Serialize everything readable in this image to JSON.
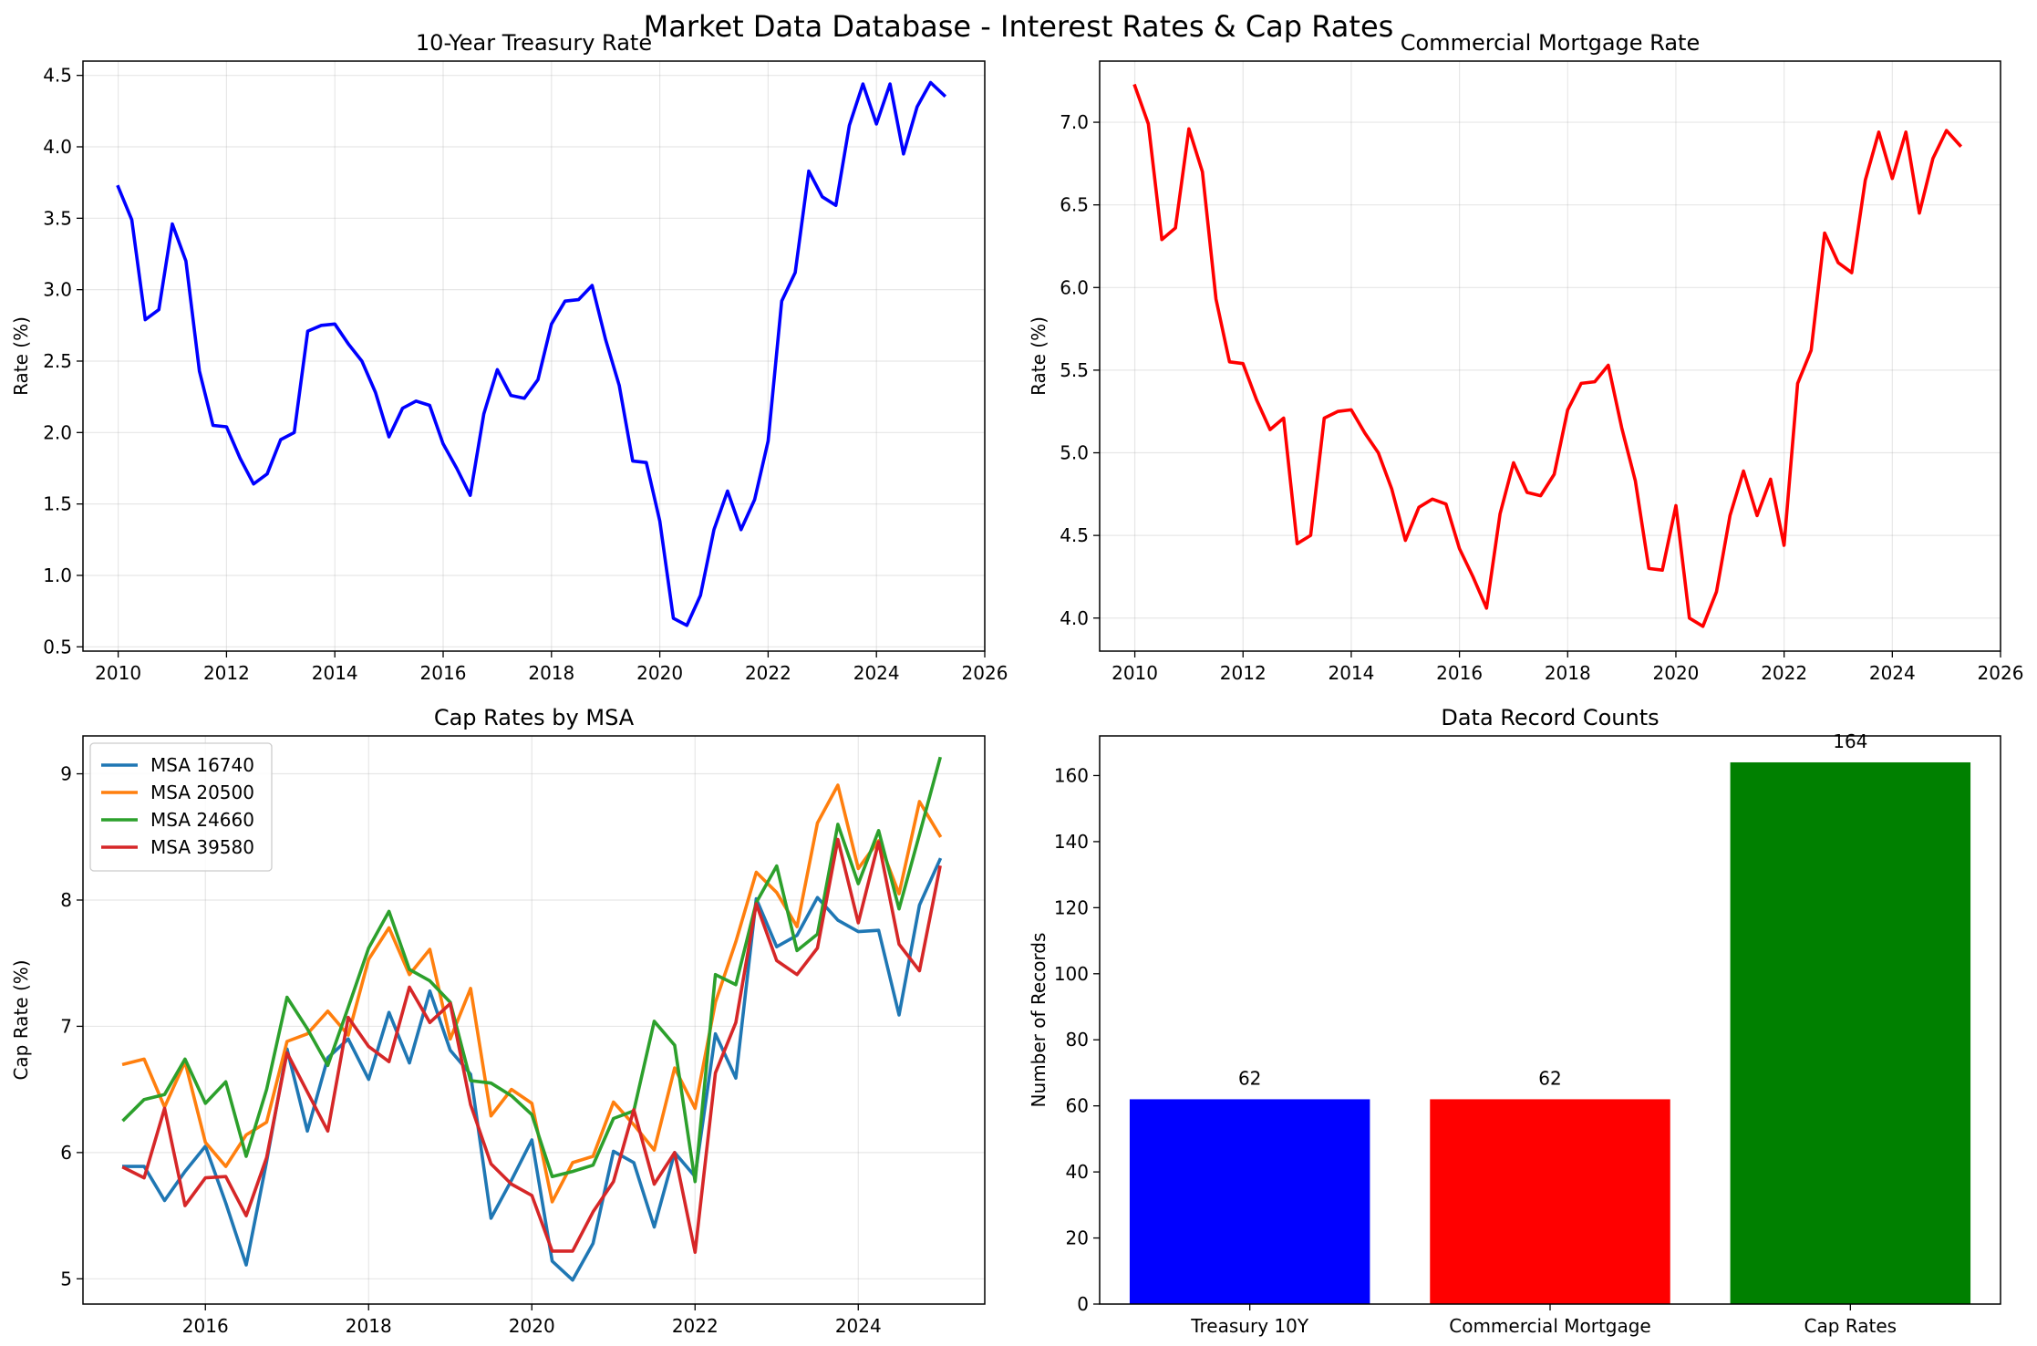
{
  "suptitle": "Market Data Database - Interest Rates & Cap Rates",
  "chart_data": [
    {
      "type": "line",
      "title": "10-Year Treasury Rate",
      "xlabel": "",
      "ylabel": "Rate (%)",
      "xlim": [
        2009.35,
        2026
      ],
      "ylim": [
        0.47,
        4.6
      ],
      "xticks": [
        2010,
        2012,
        2014,
        2016,
        2018,
        2020,
        2022,
        2024,
        2026
      ],
      "yticks": [
        0.5,
        1.0,
        1.5,
        2.0,
        2.5,
        3.0,
        3.5,
        4.0,
        4.5
      ],
      "ytick_decimals": 1,
      "grid": true,
      "series": [
        {
          "color": "#0000ff",
          "x": [
            2010.0,
            2010.25,
            2010.5,
            2010.75,
            2011.0,
            2011.25,
            2011.5,
            2011.75,
            2012.0,
            2012.25,
            2012.5,
            2012.75,
            2013.0,
            2013.25,
            2013.5,
            2013.75,
            2014.0,
            2014.25,
            2014.5,
            2014.75,
            2015.0,
            2015.25,
            2015.5,
            2015.75,
            2016.0,
            2016.25,
            2016.5,
            2016.75,
            2017.0,
            2017.25,
            2017.5,
            2017.75,
            2018.0,
            2018.25,
            2018.5,
            2018.75,
            2019.0,
            2019.25,
            2019.5,
            2019.75,
            2020.0,
            2020.25,
            2020.5,
            2020.75,
            2021.0,
            2021.25,
            2021.5,
            2021.75,
            2022.0,
            2022.25,
            2022.5,
            2022.75,
            2023.0,
            2023.25,
            2023.5,
            2023.75,
            2024.0,
            2024.25,
            2024.5,
            2024.75,
            2025.0,
            2025.25
          ],
          "y": [
            3.72,
            3.49,
            2.79,
            2.86,
            3.46,
            3.2,
            2.43,
            2.05,
            2.04,
            1.82,
            1.64,
            1.71,
            1.95,
            2.0,
            2.71,
            2.75,
            2.76,
            2.62,
            2.5,
            2.28,
            1.97,
            2.17,
            2.22,
            2.19,
            1.92,
            1.75,
            1.56,
            2.13,
            2.44,
            2.26,
            2.24,
            2.37,
            2.76,
            2.92,
            2.93,
            3.03,
            2.65,
            2.33,
            1.8,
            1.79,
            1.38,
            0.7,
            0.65,
            0.86,
            1.32,
            1.59,
            1.32,
            1.53,
            1.94,
            2.92,
            3.12,
            3.83,
            3.65,
            3.59,
            4.15,
            4.44,
            4.16,
            4.44,
            3.95,
            4.28,
            4.45,
            4.36
          ]
        }
      ]
    },
    {
      "type": "line",
      "title": "Commercial Mortgage Rate",
      "xlabel": "",
      "ylabel": "Rate (%)",
      "xlim": [
        2009.35,
        2026
      ],
      "ylim": [
        3.8,
        7.37
      ],
      "xticks": [
        2010,
        2012,
        2014,
        2016,
        2018,
        2020,
        2022,
        2024,
        2026
      ],
      "yticks": [
        4.0,
        4.5,
        5.0,
        5.5,
        6.0,
        6.5,
        7.0
      ],
      "ytick_decimals": 1,
      "grid": true,
      "series": [
        {
          "color": "#ff0000",
          "x": [
            2010.0,
            2010.25,
            2010.5,
            2010.75,
            2011.0,
            2011.25,
            2011.5,
            2011.75,
            2012.0,
            2012.25,
            2012.5,
            2012.75,
            2013.0,
            2013.25,
            2013.5,
            2013.75,
            2014.0,
            2014.25,
            2014.5,
            2014.75,
            2015.0,
            2015.25,
            2015.5,
            2015.75,
            2016.0,
            2016.25,
            2016.5,
            2016.75,
            2017.0,
            2017.25,
            2017.5,
            2017.75,
            2018.0,
            2018.25,
            2018.5,
            2018.75,
            2019.0,
            2019.25,
            2019.5,
            2019.75,
            2020.0,
            2020.25,
            2020.5,
            2020.75,
            2021.0,
            2021.25,
            2021.5,
            2021.75,
            2022.0,
            2022.25,
            2022.5,
            2022.75,
            2023.0,
            2023.25,
            2023.5,
            2023.75,
            2024.0,
            2024.25,
            2024.5,
            2024.75,
            2025.0,
            2025.25
          ],
          "y": [
            7.22,
            6.99,
            6.29,
            6.36,
            6.96,
            6.7,
            5.93,
            5.55,
            5.54,
            5.32,
            5.14,
            5.21,
            4.45,
            4.5,
            5.21,
            5.25,
            5.26,
            5.12,
            5.0,
            4.78,
            4.47,
            4.67,
            4.72,
            4.69,
            4.42,
            4.25,
            4.06,
            4.63,
            4.94,
            4.76,
            4.74,
            4.87,
            5.26,
            5.42,
            5.43,
            5.53,
            5.15,
            4.83,
            4.3,
            4.29,
            4.68,
            4.0,
            3.95,
            4.16,
            4.62,
            4.89,
            4.62,
            4.84,
            4.44,
            5.42,
            5.62,
            6.33,
            6.15,
            6.09,
            6.65,
            6.94,
            6.66,
            6.94,
            6.45,
            6.78,
            6.95,
            6.86
          ]
        }
      ]
    },
    {
      "type": "line",
      "title": "Cap Rates by MSA",
      "xlabel": "",
      "ylabel": "Cap Rate (%)",
      "xlim": [
        2014.5,
        2025.55
      ],
      "ylim": [
        4.8,
        9.3
      ],
      "xticks": [
        2016,
        2018,
        2020,
        2022,
        2024
      ],
      "yticks": [
        5,
        6,
        7,
        8,
        9
      ],
      "ytick_decimals": 0,
      "grid": true,
      "legend": "top-left",
      "series": [
        {
          "name": "MSA 16740",
          "color": "#1f77b4",
          "x": [
            2015.0,
            2015.25,
            2015.5,
            2015.75,
            2016.0,
            2016.25,
            2016.5,
            2016.75,
            2017.0,
            2017.25,
            2017.5,
            2017.75,
            2018.0,
            2018.25,
            2018.5,
            2018.75,
            2019.0,
            2019.25,
            2019.5,
            2019.75,
            2020.0,
            2020.25,
            2020.5,
            2020.75,
            2021.0,
            2021.25,
            2021.5,
            2021.75,
            2022.0,
            2022.25,
            2022.5,
            2022.75,
            2023.0,
            2023.25,
            2023.5,
            2023.75,
            2024.0,
            2024.25,
            2024.5,
            2024.75,
            2025.0
          ],
          "y": [
            5.89,
            5.89,
            5.62,
            5.85,
            6.05,
            5.6,
            5.11,
            5.93,
            6.82,
            6.17,
            6.75,
            6.9,
            6.58,
            7.11,
            6.71,
            7.28,
            6.81,
            6.62,
            5.48,
            5.78,
            6.1,
            5.14,
            4.99,
            5.28,
            6.01,
            5.92,
            5.41,
            6.0,
            5.81,
            6.94,
            6.59,
            8.01,
            7.63,
            7.72,
            8.02,
            7.84,
            7.75,
            7.76,
            7.09,
            7.96,
            8.32
          ]
        },
        {
          "name": "MSA 20500",
          "color": "#ff7f0e",
          "x": [
            2015.0,
            2015.25,
            2015.5,
            2015.75,
            2016.0,
            2016.25,
            2016.5,
            2016.75,
            2017.0,
            2017.25,
            2017.5,
            2017.75,
            2018.0,
            2018.25,
            2018.5,
            2018.75,
            2019.0,
            2019.25,
            2019.5,
            2019.75,
            2020.0,
            2020.25,
            2020.5,
            2020.75,
            2021.0,
            2021.25,
            2021.5,
            2021.75,
            2022.0,
            2022.25,
            2022.5,
            2022.75,
            2023.0,
            2023.25,
            2023.5,
            2023.75,
            2024.0,
            2024.25,
            2024.5,
            2024.75,
            2025.0
          ],
          "y": [
            6.7,
            6.74,
            6.36,
            6.72,
            6.08,
            5.89,
            6.14,
            6.24,
            6.88,
            6.94,
            7.12,
            6.93,
            7.53,
            7.78,
            7.41,
            7.61,
            6.9,
            7.3,
            6.29,
            6.5,
            6.39,
            5.61,
            5.92,
            5.97,
            6.4,
            6.22,
            6.02,
            6.67,
            6.35,
            7.19,
            7.67,
            8.22,
            8.06,
            7.79,
            8.61,
            8.91,
            8.25,
            8.47,
            8.05,
            8.78,
            8.51
          ]
        },
        {
          "name": "MSA 24660",
          "color": "#2ca02c",
          "x": [
            2015.0,
            2015.25,
            2015.5,
            2015.75,
            2016.0,
            2016.25,
            2016.5,
            2016.75,
            2017.0,
            2017.25,
            2017.5,
            2017.75,
            2018.0,
            2018.25,
            2018.5,
            2018.75,
            2019.0,
            2019.25,
            2019.5,
            2019.75,
            2020.0,
            2020.25,
            2020.5,
            2020.75,
            2021.0,
            2021.25,
            2021.5,
            2021.75,
            2022.0,
            2022.25,
            2022.5,
            2022.75,
            2023.0,
            2023.25,
            2023.5,
            2023.75,
            2024.0,
            2024.25,
            2024.5,
            2024.75,
            2025.0
          ],
          "y": [
            6.26,
            6.42,
            6.46,
            6.74,
            6.39,
            6.56,
            5.97,
            6.5,
            7.23,
            6.98,
            6.69,
            7.15,
            7.62,
            7.91,
            7.45,
            7.36,
            7.19,
            6.57,
            6.55,
            6.45,
            6.3,
            5.81,
            5.85,
            5.9,
            6.27,
            6.33,
            7.04,
            6.85,
            5.77,
            7.41,
            7.33,
            7.98,
            8.27,
            7.6,
            7.73,
            8.6,
            8.13,
            8.55,
            7.93,
            8.52,
            9.12
          ]
        },
        {
          "name": "MSA 39580",
          "color": "#d62728",
          "x": [
            2015.0,
            2015.25,
            2015.5,
            2015.75,
            2016.0,
            2016.25,
            2016.5,
            2016.75,
            2017.0,
            2017.25,
            2017.5,
            2017.75,
            2018.0,
            2018.25,
            2018.5,
            2018.75,
            2019.0,
            2019.25,
            2019.5,
            2019.75,
            2020.0,
            2020.25,
            2020.5,
            2020.75,
            2021.0,
            2021.25,
            2021.5,
            2021.75,
            2022.0,
            2022.25,
            2022.5,
            2022.75,
            2023.0,
            2023.25,
            2023.5,
            2023.75,
            2024.0,
            2024.25,
            2024.5,
            2024.75,
            2025.0
          ],
          "y": [
            5.88,
            5.8,
            6.35,
            5.58,
            5.8,
            5.81,
            5.5,
            5.96,
            6.79,
            6.48,
            6.17,
            7.07,
            6.84,
            6.72,
            7.31,
            7.03,
            7.18,
            6.38,
            5.91,
            5.75,
            5.66,
            5.22,
            5.22,
            5.53,
            5.77,
            6.34,
            5.75,
            6.0,
            5.21,
            6.63,
            7.03,
            7.97,
            7.52,
            7.41,
            7.62,
            8.48,
            7.82,
            8.46,
            7.65,
            7.44,
            8.26
          ]
        }
      ]
    },
    {
      "type": "bar",
      "title": "Data Record Counts",
      "xlabel": "",
      "ylabel": "Number of Records",
      "categories": [
        "Treasury 10Y",
        "Commercial Mortgage",
        "Cap Rates"
      ],
      "values": [
        62,
        62,
        164
      ],
      "data_labels": [
        "62",
        "62",
        "164"
      ],
      "colors": [
        "#0000ff",
        "#ff0000",
        "#008000"
      ],
      "ylim": [
        0,
        172
      ],
      "yticks": [
        0,
        20,
        40,
        60,
        80,
        100,
        120,
        140,
        160
      ],
      "ytick_decimals": 0,
      "grid": false
    }
  ]
}
